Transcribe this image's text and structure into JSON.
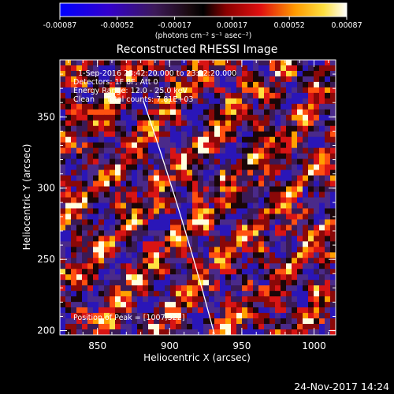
{
  "colorbar": {
    "ticks": [
      "-0.00087",
      "-0.00052",
      "-0.00017",
      "0.00017",
      "0.00052",
      "0.00087"
    ],
    "units_label": "(photons cm⁻² s⁻¹ asec⁻²)",
    "min": -0.00087,
    "max": 0.00087
  },
  "title": "Reconstructed RHESSI Image",
  "info_lines": [
    "1-Sep-2016 23:42:20.000 to 23:52:20.000",
    "Detectors: 1F 8F, Att 0",
    "Energy Range: 12.0 - 25.0 keV",
    "Clean     Total counts: 7.81E+03"
  ],
  "peak_label": "Position of Peak = [1007,322]",
  "x_axis": {
    "label": "Heliocentric X (arcsec)",
    "range": [
      824,
      1015
    ],
    "ticks": [
      850,
      900,
      950,
      1000
    ]
  },
  "y_axis": {
    "label": "Heliocentric Y (arcsec)",
    "range": [
      197,
      390
    ],
    "ticks": [
      200,
      250,
      300,
      350
    ]
  },
  "footer_timestamp": "24-Nov-2017 14:24",
  "colors": {
    "frame_background": "#000000",
    "text": "#ffffff",
    "limb_line": "#ffffff"
  }
}
